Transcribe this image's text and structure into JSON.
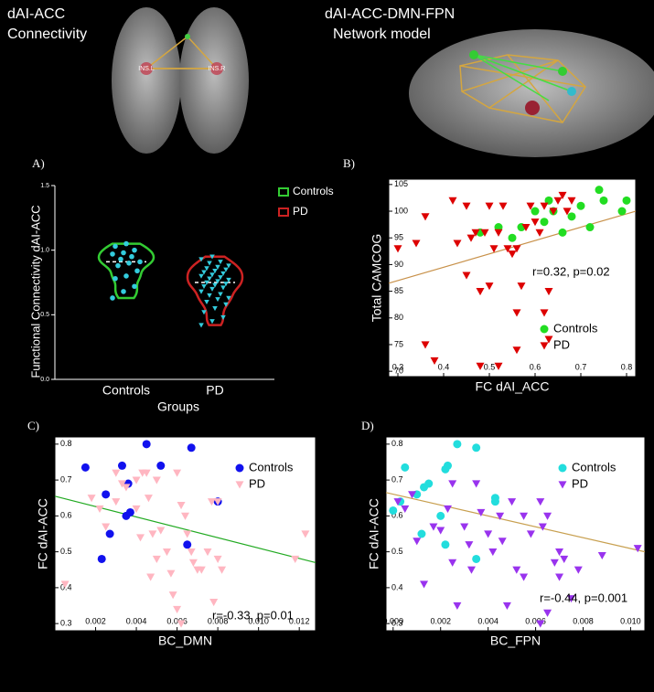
{
  "header": {
    "left_title": [
      "dAI-ACC",
      "Connectivity"
    ],
    "right_title": [
      "dAI-ACC-DMN-FPN",
      "Network model"
    ],
    "node_left": "INS.L",
    "node_right": "INS.R"
  },
  "chart_data": [
    {
      "type": "violin",
      "label": "A)",
      "ylabel": "Functional Connectivity dAI-ACC",
      "xlabel": "Groups",
      "categories": [
        "Controls",
        "PD"
      ],
      "ylim": [
        0,
        1.5
      ],
      "yticks": [
        {
          "value": 0,
          "label": "0.0"
        },
        {
          "value": 0.5,
          "label": "0.5"
        },
        {
          "value": 1,
          "label": "1.0"
        },
        {
          "value": 1.5,
          "label": "1.5"
        }
      ],
      "point_color": "#33ccdd",
      "series": [
        {
          "name": "Controls",
          "color": "#33cc33",
          "marker": "circle",
          "values": [
            0.63,
            0.68,
            0.72,
            0.78,
            0.8,
            0.84,
            0.88,
            0.9,
            0.91,
            0.93,
            0.95,
            0.97,
            0.98,
            1.0,
            1.03,
            1.05
          ]
        },
        {
          "name": "PD",
          "color": "#cc2222",
          "marker": "triangle",
          "values": [
            0.42,
            0.45,
            0.48,
            0.52,
            0.55,
            0.58,
            0.6,
            0.62,
            0.63,
            0.65,
            0.66,
            0.68,
            0.7,
            0.71,
            0.72,
            0.73,
            0.74,
            0.75,
            0.76,
            0.77,
            0.78,
            0.79,
            0.8,
            0.81,
            0.82,
            0.83,
            0.84,
            0.85,
            0.86,
            0.87,
            0.88,
            0.9,
            0.91,
            0.93,
            0.95
          ]
        }
      ]
    },
    {
      "type": "scatter",
      "label": "B)",
      "xlabel": "FC dAI_ACC",
      "ylabel": "Total CAMCOG",
      "xlim": [
        0.28,
        0.82
      ],
      "xticks": [
        0.3,
        0.4,
        0.5,
        0.6,
        0.7,
        0.8
      ],
      "ylim": [
        69,
        106
      ],
      "yticks": [
        70,
        75,
        80,
        85,
        90,
        95,
        100,
        105
      ],
      "annotation": "r=0.32, p=0.02",
      "fit": {
        "color": "#c8914a",
        "x": [
          0.28,
          0.82
        ],
        "y": [
          86.5,
          100
        ]
      },
      "series": [
        {
          "name": "Controls",
          "color": "#22dd22",
          "marker": "circle",
          "x": [
            0.48,
            0.52,
            0.55,
            0.57,
            0.6,
            0.63,
            0.64,
            0.66,
            0.68,
            0.7,
            0.72,
            0.74,
            0.75,
            0.79,
            0.8,
            0.62
          ],
          "values": [
            96,
            97,
            95,
            97,
            100,
            102,
            100,
            96,
            99,
            101,
            97,
            104,
            102,
            100,
            102,
            98
          ]
        },
        {
          "name": "PD",
          "color": "#dd0000",
          "marker": "triangle",
          "x": [
            0.3,
            0.34,
            0.36,
            0.36,
            0.38,
            0.42,
            0.43,
            0.45,
            0.45,
            0.46,
            0.47,
            0.48,
            0.48,
            0.49,
            0.5,
            0.5,
            0.51,
            0.52,
            0.53,
            0.54,
            0.55,
            0.56,
            0.56,
            0.57,
            0.58,
            0.59,
            0.6,
            0.61,
            0.62,
            0.62,
            0.63,
            0.63,
            0.64,
            0.65,
            0.66,
            0.67,
            0.68,
            0.56,
            0.52
          ],
          "values": [
            93,
            94,
            75,
            99,
            72,
            102,
            94,
            101,
            88,
            95,
            96,
            85,
            71,
            96,
            86,
            101,
            93,
            71,
            101,
            93,
            92,
            93,
            81,
            86,
            97,
            101,
            98,
            96,
            101,
            81,
            76,
            85,
            100,
            102,
            103,
            100,
            102,
            74,
            96
          ]
        }
      ]
    },
    {
      "type": "scatter",
      "label": "C)",
      "xlabel": "BC_DMN",
      "ylabel": "FC dAI-ACC",
      "xlim": [
        0,
        0.0128
      ],
      "xticks": [
        0.002,
        0.004,
        0.006,
        0.008,
        {
          "value": 0.01,
          "label": "0.010"
        },
        0.012
      ],
      "ylim": [
        0.28,
        0.82
      ],
      "yticks": [
        0.3,
        0.4,
        0.5,
        0.6,
        0.7,
        0.8
      ],
      "annotation": "r=-0.33, p=0.01",
      "fit": {
        "color": "#22aa22",
        "x": [
          0,
          0.0128
        ],
        "y": [
          0.655,
          0.47
        ]
      },
      "series": [
        {
          "name": "Controls",
          "color": "#1111ee",
          "marker": "circle",
          "x": [
            0.0015,
            0.0025,
            0.0027,
            0.0023,
            0.0033,
            0.0035,
            0.0036,
            0.0037,
            0.0045,
            0.0052,
            0.0067,
            0.0065,
            0.008
          ],
          "values": [
            0.735,
            0.66,
            0.55,
            0.48,
            0.74,
            0.6,
            0.69,
            0.61,
            0.8,
            0.74,
            0.79,
            0.52,
            0.64
          ]
        },
        {
          "name": "PD",
          "color": "#ffb6c1",
          "marker": "triangle",
          "x": [
            0.0005,
            0.0018,
            0.0022,
            0.0025,
            0.003,
            0.003,
            0.0033,
            0.0035,
            0.004,
            0.004,
            0.0042,
            0.0043,
            0.0045,
            0.0046,
            0.0048,
            0.005,
            0.005,
            0.0052,
            0.0055,
            0.0057,
            0.0058,
            0.006,
            0.006,
            0.0062,
            0.0062,
            0.0064,
            0.0065,
            0.0067,
            0.0068,
            0.007,
            0.0072,
            0.0075,
            0.0077,
            0.0078,
            0.008,
            0.008,
            0.0082,
            0.0118,
            0.0123,
            0.0047
          ],
          "values": [
            0.41,
            0.65,
            0.62,
            0.57,
            0.72,
            0.64,
            0.69,
            0.68,
            0.7,
            0.62,
            0.54,
            0.72,
            0.72,
            0.65,
            0.55,
            0.7,
            0.48,
            0.56,
            0.5,
            0.44,
            0.38,
            0.72,
            0.34,
            0.3,
            0.63,
            0.6,
            0.55,
            0.5,
            0.47,
            0.45,
            0.45,
            0.5,
            0.64,
            0.36,
            0.64,
            0.48,
            0.45,
            0.48,
            0.55,
            0.43
          ]
        }
      ]
    },
    {
      "type": "scatter",
      "label": "D)",
      "xlabel": "BC_FPN",
      "ylabel": "FC dAI-ACC",
      "xlim": [
        -0.0003,
        0.0106
      ],
      "xticks": [
        {
          "value": 0,
          "label": "0.000"
        },
        0.002,
        0.004,
        0.006,
        0.008,
        {
          "value": 0.01,
          "label": "0.010"
        }
      ],
      "ylim": [
        0.28,
        0.82
      ],
      "yticks": [
        0.3,
        0.4,
        0.5,
        0.6,
        0.7,
        0.8
      ],
      "annotation": "r=-0.44, p=0.001",
      "fit": {
        "color": "#c8a050",
        "x": [
          -0.0003,
          0.0106
        ],
        "y": [
          0.665,
          0.5
        ]
      },
      "series": [
        {
          "name": "Controls",
          "color": "#22dddd",
          "marker": "circle",
          "x": [
            0,
            0.0003,
            0.0005,
            0.001,
            0.0012,
            0.0013,
            0.0015,
            0.002,
            0.0022,
            0.0023,
            0.0027,
            0.0035,
            0.0035,
            0.0043,
            0.0043,
            0.0022
          ],
          "values": [
            0.615,
            0.64,
            0.735,
            0.66,
            0.55,
            0.68,
            0.69,
            0.6,
            0.73,
            0.74,
            0.8,
            0.79,
            0.48,
            0.64,
            0.65,
            0.52
          ]
        },
        {
          "name": "PD",
          "color": "#9933ee",
          "marker": "triangle",
          "x": [
            0.0002,
            0.0005,
            0.0008,
            0.001,
            0.0013,
            0.0017,
            0.002,
            0.0023,
            0.0025,
            0.0025,
            0.0027,
            0.003,
            0.0032,
            0.0033,
            0.0035,
            0.0037,
            0.004,
            0.0042,
            0.0045,
            0.0048,
            0.005,
            0.0052,
            0.0055,
            0.0058,
            0.0062,
            0.0063,
            0.0065,
            0.0065,
            0.0068,
            0.007,
            0.007,
            0.0072,
            0.0075,
            0.0078,
            0.0088,
            0.0103,
            0.0062,
            0.0055,
            0.0046
          ],
          "values": [
            0.64,
            0.62,
            0.66,
            0.53,
            0.41,
            0.57,
            0.56,
            0.62,
            0.47,
            0.69,
            0.35,
            0.57,
            0.52,
            0.45,
            0.69,
            0.61,
            0.55,
            0.5,
            0.6,
            0.35,
            0.64,
            0.45,
            0.6,
            0.55,
            0.64,
            0.57,
            0.6,
            0.33,
            0.47,
            0.5,
            0.43,
            0.48,
            0.37,
            0.45,
            0.49,
            0.51,
            0.3,
            0.43,
            0.53
          ]
        }
      ]
    }
  ]
}
